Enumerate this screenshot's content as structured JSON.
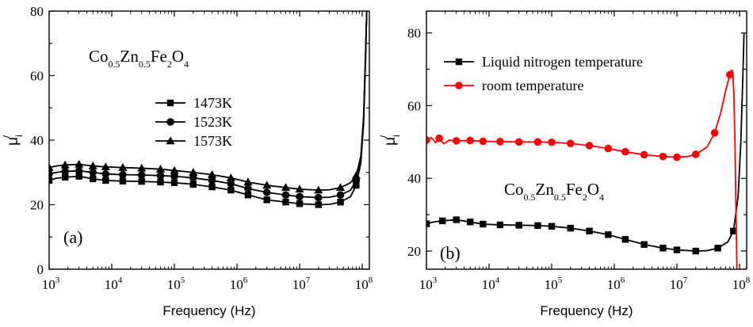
{
  "chart_data": [
    {
      "panel_label": "(a)",
      "type": "line",
      "x_scale": "log",
      "xlim": [
        1000,
        130000000
      ],
      "ylim": [
        0,
        80
      ],
      "xlabel": "Frequency (Hz)",
      "ylabel": {
        "main": "μ",
        "sub": "i",
        "sup": "/"
      },
      "x_ticks": [
        {
          "base": "10",
          "exp": "3"
        },
        {
          "base": "10",
          "exp": "4"
        },
        {
          "base": "10",
          "exp": "5"
        },
        {
          "base": "10",
          "exp": "6"
        },
        {
          "base": "10",
          "exp": "7"
        },
        {
          "base": "10",
          "exp": "8"
        }
      ],
      "y_ticks": [
        "0",
        "20",
        "40",
        "60",
        "80"
      ],
      "annotation": {
        "text": [
          {
            "t": "Co",
            "sub": false
          },
          {
            "t": "0.5",
            "sub": true
          },
          {
            "t": "Zn",
            "sub": false
          },
          {
            "t": "0.5",
            "sub": true
          },
          {
            "t": "Fe",
            "sub": false
          },
          {
            "t": "2",
            "sub": true
          },
          {
            "t": "O",
            "sub": false
          },
          {
            "t": "4",
            "sub": true
          }
        ]
      },
      "legend_position": "upper-middle",
      "series": [
        {
          "name": "1473K",
          "marker": "square",
          "color": "#000000",
          "points": [
            [
              1000,
              27.5
            ],
            [
              1300,
              28.2
            ],
            [
              1800,
              28.5
            ],
            [
              3000,
              28.8
            ],
            [
              5000,
              28.0
            ],
            [
              8000,
              27.5
            ],
            [
              15000,
              27.3
            ],
            [
              30000,
              27.2
            ],
            [
              60000,
              27.0
            ],
            [
              100000,
              26.8
            ],
            [
              200000,
              26.3
            ],
            [
              400000,
              25.5
            ],
            [
              800000,
              24.5
            ],
            [
              1500000,
              23.0
            ],
            [
              3000000,
              21.5
            ],
            [
              6000000,
              20.8
            ],
            [
              10000000,
              20.3
            ],
            [
              20000000,
              20.0
            ],
            [
              30000000,
              20.1
            ],
            [
              45000000,
              20.8
            ],
            [
              65000000,
              22.5
            ],
            [
              80000000,
              26.0
            ],
            [
              95000000,
              33.0
            ],
            [
              105000000,
              45.0
            ],
            [
              113000000,
              65.0
            ],
            [
              118000000,
              80.0
            ]
          ]
        },
        {
          "name": "1523K",
          "marker": "circle",
          "color": "#000000",
          "points": [
            [
              1000,
              29.5
            ],
            [
              1300,
              30.0
            ],
            [
              1800,
              30.3
            ],
            [
              3000,
              30.5
            ],
            [
              5000,
              30.0
            ],
            [
              8000,
              29.5
            ],
            [
              15000,
              29.3
            ],
            [
              30000,
              29.2
            ],
            [
              60000,
              29.0
            ],
            [
              100000,
              28.8
            ],
            [
              200000,
              28.3
            ],
            [
              400000,
              27.5
            ],
            [
              800000,
              26.5
            ],
            [
              1500000,
              25.0
            ],
            [
              3000000,
              23.8
            ],
            [
              6000000,
              23.0
            ],
            [
              10000000,
              22.5
            ],
            [
              20000000,
              22.2
            ],
            [
              30000000,
              22.3
            ],
            [
              45000000,
              23.0
            ],
            [
              65000000,
              24.5
            ],
            [
              80000000,
              27.5
            ],
            [
              95000000,
              34.0
            ],
            [
              105000000,
              46.0
            ],
            [
              113000000,
              66.0
            ],
            [
              118000000,
              80.0
            ]
          ]
        },
        {
          "name": "1573K",
          "marker": "triangle",
          "color": "#000000",
          "points": [
            [
              1000,
              31.5
            ],
            [
              1300,
              32.0
            ],
            [
              1800,
              32.3
            ],
            [
              3000,
              32.5
            ],
            [
              5000,
              32.0
            ],
            [
              8000,
              31.7
            ],
            [
              15000,
              31.5
            ],
            [
              30000,
              31.3
            ],
            [
              60000,
              31.0
            ],
            [
              100000,
              30.6
            ],
            [
              200000,
              30.0
            ],
            [
              400000,
              29.3
            ],
            [
              800000,
              28.3
            ],
            [
              1500000,
              27.0
            ],
            [
              3000000,
              26.0
            ],
            [
              6000000,
              25.3
            ],
            [
              10000000,
              24.8
            ],
            [
              20000000,
              24.5
            ],
            [
              30000000,
              24.6
            ],
            [
              45000000,
              25.3
            ],
            [
              65000000,
              26.8
            ],
            [
              80000000,
              29.0
            ],
            [
              95000000,
              35.0
            ],
            [
              105000000,
              47.0
            ],
            [
              113000000,
              67.0
            ],
            [
              118000000,
              80.0
            ]
          ]
        }
      ]
    },
    {
      "panel_label": "(b)",
      "type": "line",
      "x_scale": "log",
      "xlim": [
        1000,
        130000000
      ],
      "ylim": [
        15,
        86
      ],
      "xlabel": "Frequency (Hz)",
      "ylabel": {
        "main": "μ",
        "sub": "i",
        "sup": "/"
      },
      "x_ticks": [
        {
          "base": "10",
          "exp": "3"
        },
        {
          "base": "10",
          "exp": "4"
        },
        {
          "base": "10",
          "exp": "5"
        },
        {
          "base": "10",
          "exp": "6"
        },
        {
          "base": "10",
          "exp": "7"
        },
        {
          "base": "10",
          "exp": "8"
        }
      ],
      "y_ticks": [
        "20",
        "40",
        "60",
        "80"
      ],
      "annotation": {
        "text": [
          {
            "t": "Co",
            "sub": false
          },
          {
            "t": "0.5",
            "sub": true
          },
          {
            "t": "Zn",
            "sub": false
          },
          {
            "t": "0.5",
            "sub": true
          },
          {
            "t": "Fe",
            "sub": false
          },
          {
            "t": "2",
            "sub": true
          },
          {
            "t": "O",
            "sub": false
          },
          {
            "t": "4",
            "sub": true
          }
        ]
      },
      "legend_position": "top-left",
      "series": [
        {
          "name": "Liquid nitrogen temperature",
          "marker": "square",
          "color": "#000000",
          "points": [
            [
              1000,
              27.5
            ],
            [
              1300,
              28.0
            ],
            [
              1800,
              28.3
            ],
            [
              3000,
              28.6
            ],
            [
              5000,
              28.0
            ],
            [
              8000,
              27.4
            ],
            [
              15000,
              27.2
            ],
            [
              30000,
              27.1
            ],
            [
              60000,
              27.0
            ],
            [
              100000,
              26.8
            ],
            [
              200000,
              26.3
            ],
            [
              400000,
              25.5
            ],
            [
              800000,
              24.5
            ],
            [
              1500000,
              23.2
            ],
            [
              3000000,
              21.8
            ],
            [
              6000000,
              20.8
            ],
            [
              10000000,
              20.3
            ],
            [
              20000000,
              20.0
            ],
            [
              30000000,
              20.1
            ],
            [
              45000000,
              20.8
            ],
            [
              65000000,
              22.5
            ],
            [
              80000000,
              25.5
            ],
            [
              95000000,
              35.0
            ],
            [
              105000000,
              50.0
            ],
            [
              113000000,
              68.0
            ],
            [
              118000000,
              80.0
            ]
          ]
        },
        {
          "name": "room temperature",
          "marker": "circle",
          "color": "#ff0000",
          "points": [
            [
              1000,
              50.5
            ],
            [
              1200,
              51.2
            ],
            [
              1400,
              49.8
            ],
            [
              1600,
              51.0
            ],
            [
              1900,
              49.5
            ],
            [
              2300,
              50.5
            ],
            [
              3000,
              50.3
            ],
            [
              5000,
              50.4
            ],
            [
              8000,
              50.2
            ],
            [
              15000,
              50.1
            ],
            [
              30000,
              50.0
            ],
            [
              60000,
              50.0
            ],
            [
              100000,
              49.9
            ],
            [
              200000,
              49.6
            ],
            [
              400000,
              49.0
            ],
            [
              800000,
              48.2
            ],
            [
              1500000,
              47.3
            ],
            [
              3000000,
              46.5
            ],
            [
              6000000,
              46.0
            ],
            [
              10000000,
              45.8
            ],
            [
              15000000,
              46.0
            ],
            [
              20000000,
              46.6
            ],
            [
              30000000,
              48.5
            ],
            [
              40000000,
              52.5
            ],
            [
              50000000,
              58.0
            ],
            [
              60000000,
              64.0
            ],
            [
              70000000,
              68.5
            ],
            [
              75000000,
              69.8
            ],
            [
              78000000,
              69.2
            ],
            [
              81000000,
              64.0
            ],
            [
              85000000,
              48.0
            ],
            [
              88000000,
              30.0
            ],
            [
              91000000,
              15.0
            ]
          ]
        }
      ]
    }
  ]
}
